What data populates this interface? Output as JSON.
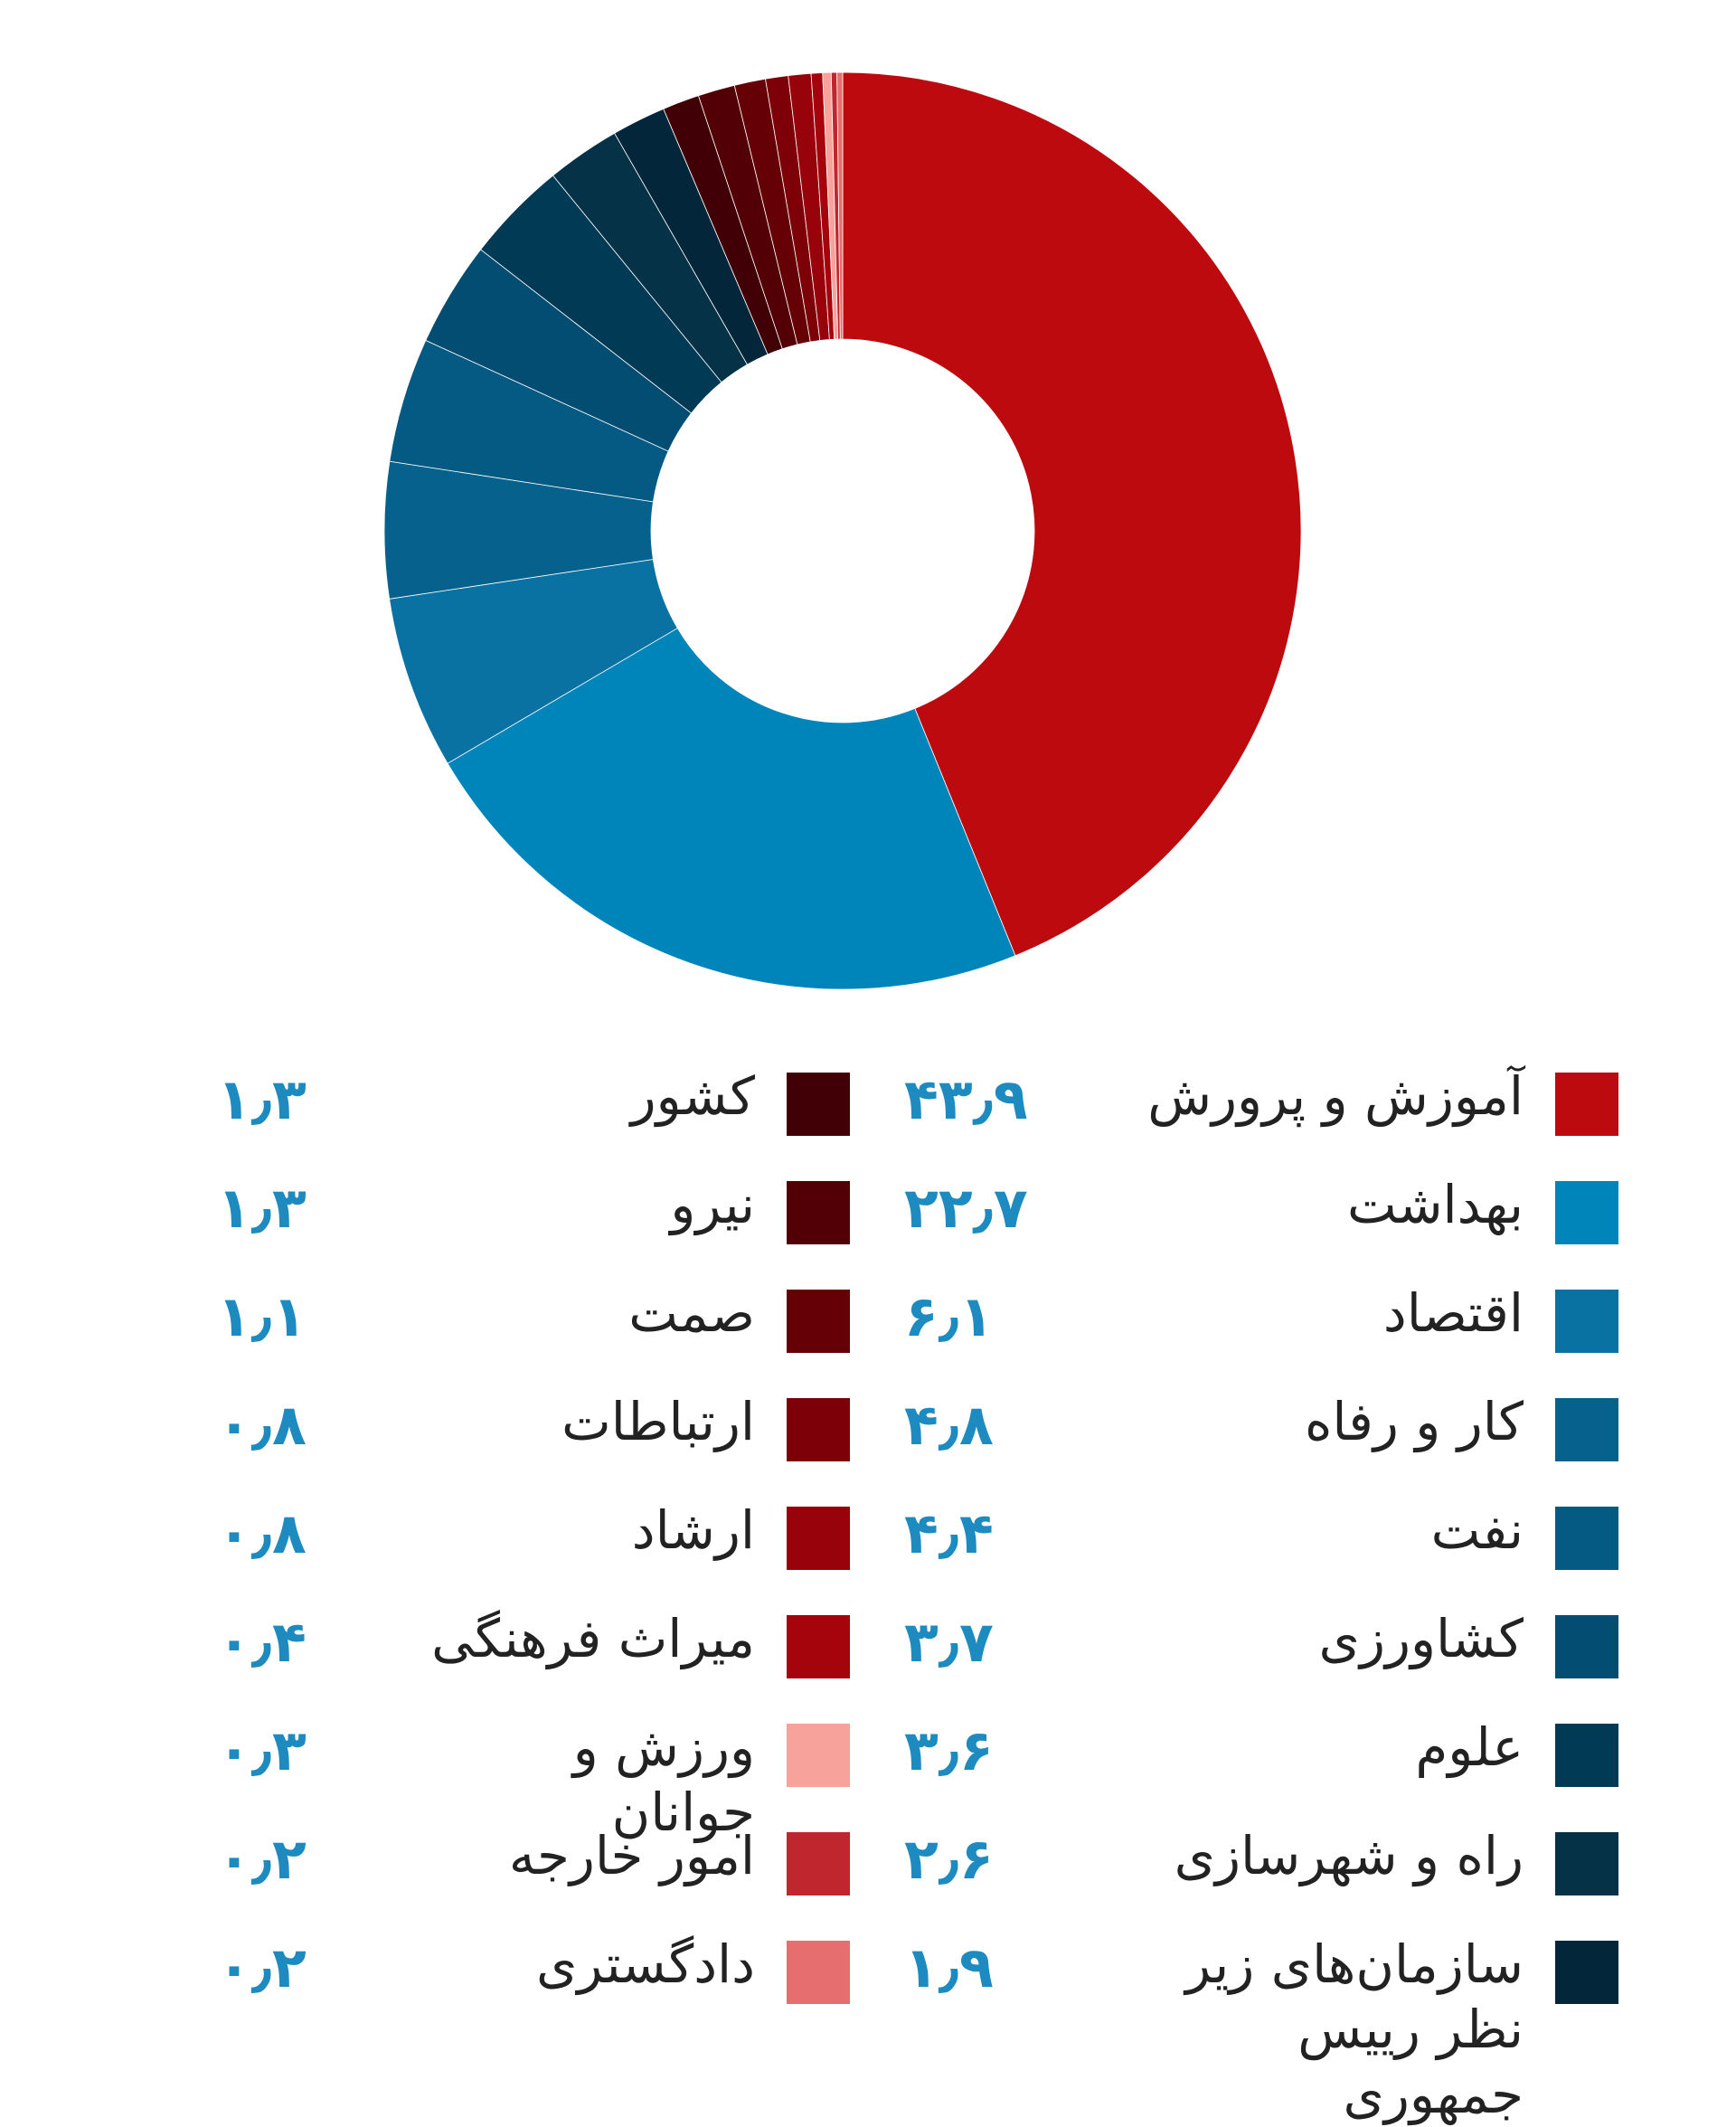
{
  "chart_data": {
    "type": "pie",
    "donut": true,
    "slices": [
      {
        "label": "آموزش و پرورش",
        "value": 43.9,
        "value_label": "۴۳٫۹",
        "color": "#bd0a0f"
      },
      {
        "label": "بهداشت",
        "value": 22.7,
        "value_label": "۲۲٫۷",
        "color": "#0085bb"
      },
      {
        "label": "اقتصاد",
        "value": 6.1,
        "value_label": "۶٫۱",
        "color": "#0a72a3"
      },
      {
        "label": "کار و رفاه",
        "value": 4.8,
        "value_label": "۴٫۸",
        "color": "#06628c"
      },
      {
        "label": "نفت",
        "value": 4.4,
        "value_label": "۴٫۴",
        "color": "#055a83"
      },
      {
        "label": "کشاورزی",
        "value": 3.7,
        "value_label": "۳٫۷",
        "color": "#044d72"
      },
      {
        "label": "علوم",
        "value": 3.6,
        "value_label": "۳٫۶",
        "color": "#003a55"
      },
      {
        "label": "راه و شهرسازی",
        "value": 2.6,
        "value_label": "۲٫۶",
        "color": "#063247"
      },
      {
        "label": "سازمان‌های زیر نظر رییس جمهوری",
        "value": 1.9,
        "value_label": "۱٫۹",
        "color": "#04263a"
      },
      {
        "label": "کشور",
        "value": 1.3,
        "value_label": "۱٫۳",
        "color": "#410005"
      },
      {
        "label": "نیرو",
        "value": 1.3,
        "value_label": "۱٫۳",
        "color": "#520006"
      },
      {
        "label": "صمت",
        "value": 1.1,
        "value_label": "۱٫۱",
        "color": "#650007"
      },
      {
        "label": "ارتباطات",
        "value": 0.8,
        "value_label": "۰٫۸",
        "color": "#7d0008"
      },
      {
        "label": "ارشاد",
        "value": 0.8,
        "value_label": "۰٫۸",
        "color": "#98030b"
      },
      {
        "label": "میراث فرهنگی",
        "value": 0.4,
        "value_label": "۰٫۴",
        "color": "#a5040c"
      },
      {
        "label": "ورزش و جوانان",
        "value": 0.3,
        "value_label": "۰٫۳",
        "color": "#f7a39c"
      },
      {
        "label": "امور خارجه",
        "value": 0.2,
        "value_label": "۰٫۲",
        "color": "#c0262d"
      },
      {
        "label": "دادگستری",
        "value": 0.2,
        "value_label": "۰٫۲",
        "color": "#e66e6e"
      }
    ]
  },
  "legend": {
    "right": [
      {
        "label": "آموزش و پرورش",
        "value": "۴۳٫۹",
        "color": "#bd0a0f"
      },
      {
        "label": "بهداشت",
        "value": "۲۲٫۷",
        "color": "#0085bb"
      },
      {
        "label": "اقتصاد",
        "value": "۶٫۱",
        "color": "#0a72a3"
      },
      {
        "label": "کار و رفاه",
        "value": "۴٫۸",
        "color": "#06628c"
      },
      {
        "label": "نفت",
        "value": "۴٫۴",
        "color": "#055a83"
      },
      {
        "label": "کشاورزی",
        "value": "۳٫۷",
        "color": "#044d72"
      },
      {
        "label": "علوم",
        "value": "۳٫۶",
        "color": "#003a55"
      },
      {
        "label": "راه و شهرسازی",
        "value": "۲٫۶",
        "color": "#063247"
      },
      {
        "label": "سازمان‌های زیر نظر رییس جمهوری",
        "value": "۱٫۹",
        "color": "#04263a"
      }
    ],
    "left": [
      {
        "label": "کشور",
        "value": "۱٫۳",
        "color": "#410005"
      },
      {
        "label": "نیرو",
        "value": "۱٫۳",
        "color": "#520006"
      },
      {
        "label": "صمت",
        "value": "۱٫۱",
        "color": "#650007"
      },
      {
        "label": "ارتباطات",
        "value": "۰٫۸",
        "color": "#7d0008"
      },
      {
        "label": "ارشاد",
        "value": "۰٫۸",
        "color": "#98030b"
      },
      {
        "label": "میراث فرهنگی",
        "value": "۰٫۴",
        "color": "#a5040c"
      },
      {
        "label": "ورزش و جوانان",
        "value": "۰٫۳",
        "color": "#f7a39c"
      },
      {
        "label": "امور خارجه",
        "value": "۰٫۲",
        "color": "#c0262d"
      },
      {
        "label": "دادگستری",
        "value": "۰٫۲",
        "color": "#e66e6e"
      }
    ]
  }
}
